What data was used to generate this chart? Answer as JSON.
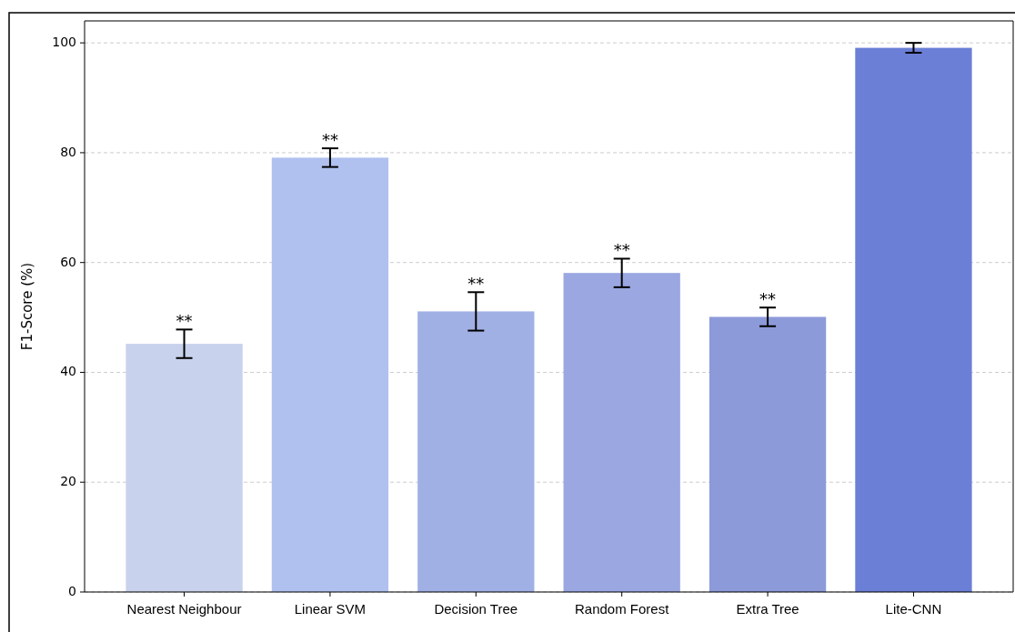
{
  "chart_data": {
    "type": "bar",
    "ylabel": "F1-Score (%)",
    "categories": [
      "Nearest Neighbour",
      "Linear SVM",
      "Decision Tree",
      "Random Forest",
      "Extra Tree",
      "Lite-CNN"
    ],
    "values": [
      45.2,
      79.1,
      51.1,
      58.1,
      50.1,
      99.1
    ],
    "colors": [
      "#c8d2ec",
      "#b0c1ef",
      "#a1b0e4",
      "#9ba7e1",
      "#8c9ad9",
      "#6b7fd6"
    ],
    "errors": [
      2.6,
      1.7,
      3.5,
      2.6,
      1.7,
      0.9
    ],
    "ylim": [
      0,
      104
    ],
    "yticks": [
      0,
      20,
      40,
      60,
      80,
      100
    ],
    "grid": "y",
    "annotations": [
      {
        "text": "**",
        "x": "Nearest Neighbour",
        "y": 47.8
      },
      {
        "text": "**",
        "x": "Linear SVM",
        "y": 80.8
      },
      {
        "text": "**",
        "x": "Decision Tree",
        "y": 54.6
      },
      {
        "text": "**",
        "x": "Random Forest",
        "y": 60.7
      },
      {
        "text": "**",
        "x": "Extra Tree",
        "y": 51.8
      }
    ]
  }
}
